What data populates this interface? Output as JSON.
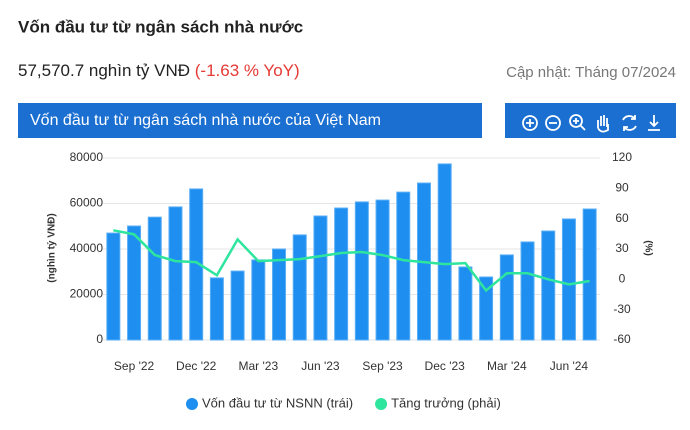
{
  "header": {
    "title": "Vốn đầu tư từ ngân sách nhà nước",
    "value": "57,570.7 nghìn tỷ VNĐ",
    "change": "(-1.63 % YoY)",
    "updated": "Cập nhật: Tháng 07/2024"
  },
  "panel_title": "Vốn đầu tư từ ngân sách nhà nước của Việt Nam",
  "chart_data": {
    "type": "bar-line",
    "categories": [
      null,
      "Sep '22",
      null,
      null,
      "Dec '22",
      null,
      null,
      "Mar '23",
      null,
      null,
      "Jun '23",
      null,
      null,
      "Sep '23",
      null,
      null,
      "Dec '23",
      null,
      null,
      "Mar '24",
      null,
      null,
      "Jun '24",
      null
    ],
    "series": [
      {
        "name": "Vốn đầu tư từ NSNN (trái)",
        "color": "#1e8ff0",
        "type": "bar",
        "values": [
          47000,
          50100,
          54000,
          58500,
          66400,
          27300,
          30300,
          35200,
          40000,
          46200,
          54500,
          58000,
          60700,
          61500,
          65000,
          69000,
          77400,
          32100,
          27700,
          37400,
          43100,
          47900,
          53200,
          57570.7
        ]
      },
      {
        "name": "Tăng trưởng (phải)",
        "color": "#2ee59d",
        "type": "line",
        "axis": "y2",
        "values": [
          48.5,
          44.5,
          24,
          18,
          17,
          4,
          39.5,
          18,
          19,
          20,
          23,
          26,
          27,
          24,
          19,
          17,
          15,
          16,
          -11,
          6,
          6,
          0,
          -5,
          -1.63
        ]
      }
    ],
    "ylabel": "(nghìn tỷ VNĐ)",
    "y2label": "(%)",
    "ylim": [
      0,
      80000
    ],
    "yticks": [
      0,
      20000,
      40000,
      60000,
      80000
    ],
    "y2lim": [
      -60,
      120
    ],
    "y2ticks": [
      -60,
      -30,
      0,
      30,
      60,
      90,
      120
    ],
    "grid": true
  }
}
